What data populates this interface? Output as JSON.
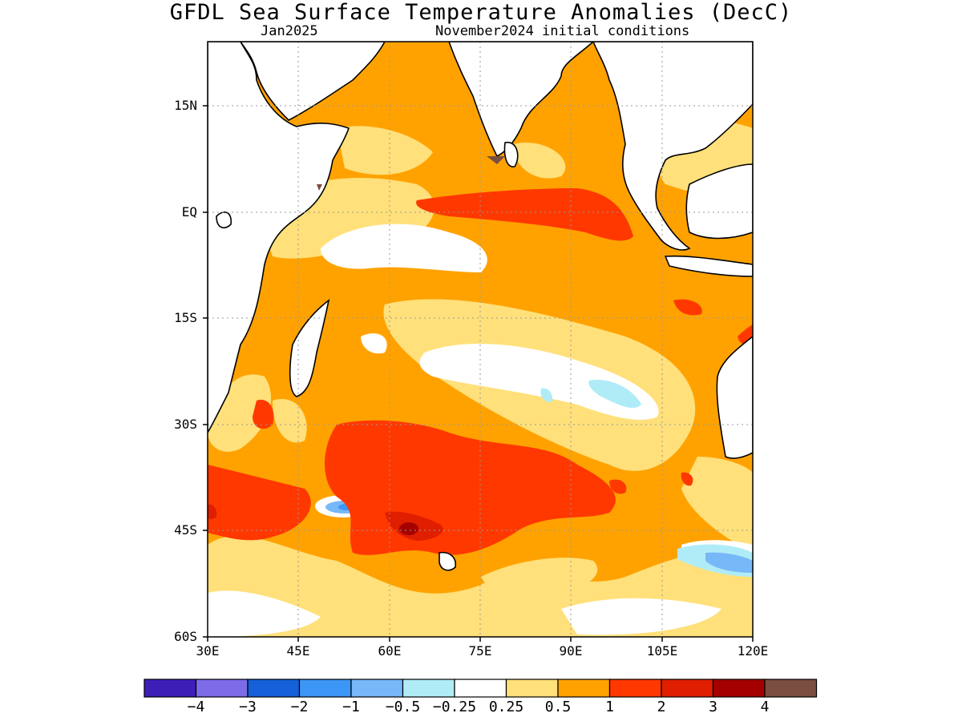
{
  "title": "GFDL Sea Surface Temperature Anomalies (DecC)",
  "subtitle_left": "Jan2025",
  "subtitle_right": "November2024 initial conditions",
  "lat_labels": [
    "15N",
    "EQ",
    "15S",
    "30S",
    "45S",
    "60S"
  ],
  "lon_labels": [
    "30E",
    "45E",
    "60E",
    "75E",
    "90E",
    "105E",
    "120E"
  ],
  "colorbar": {
    "colors": [
      "#3d1fb8",
      "#7d6be8",
      "#1560d8",
      "#3c96f5",
      "#77b8f8",
      "#b0ecf7",
      "#ffffff",
      "#ffe07a",
      "#ffa200",
      "#ff3800",
      "#e01e00",
      "#a50000",
      "#7a4e40"
    ],
    "labels": [
      "−4",
      "−3",
      "−2",
      "−1",
      "−0.5",
      "−0.25",
      "0.25",
      "0.5",
      "1",
      "2",
      "3",
      "4"
    ]
  }
}
